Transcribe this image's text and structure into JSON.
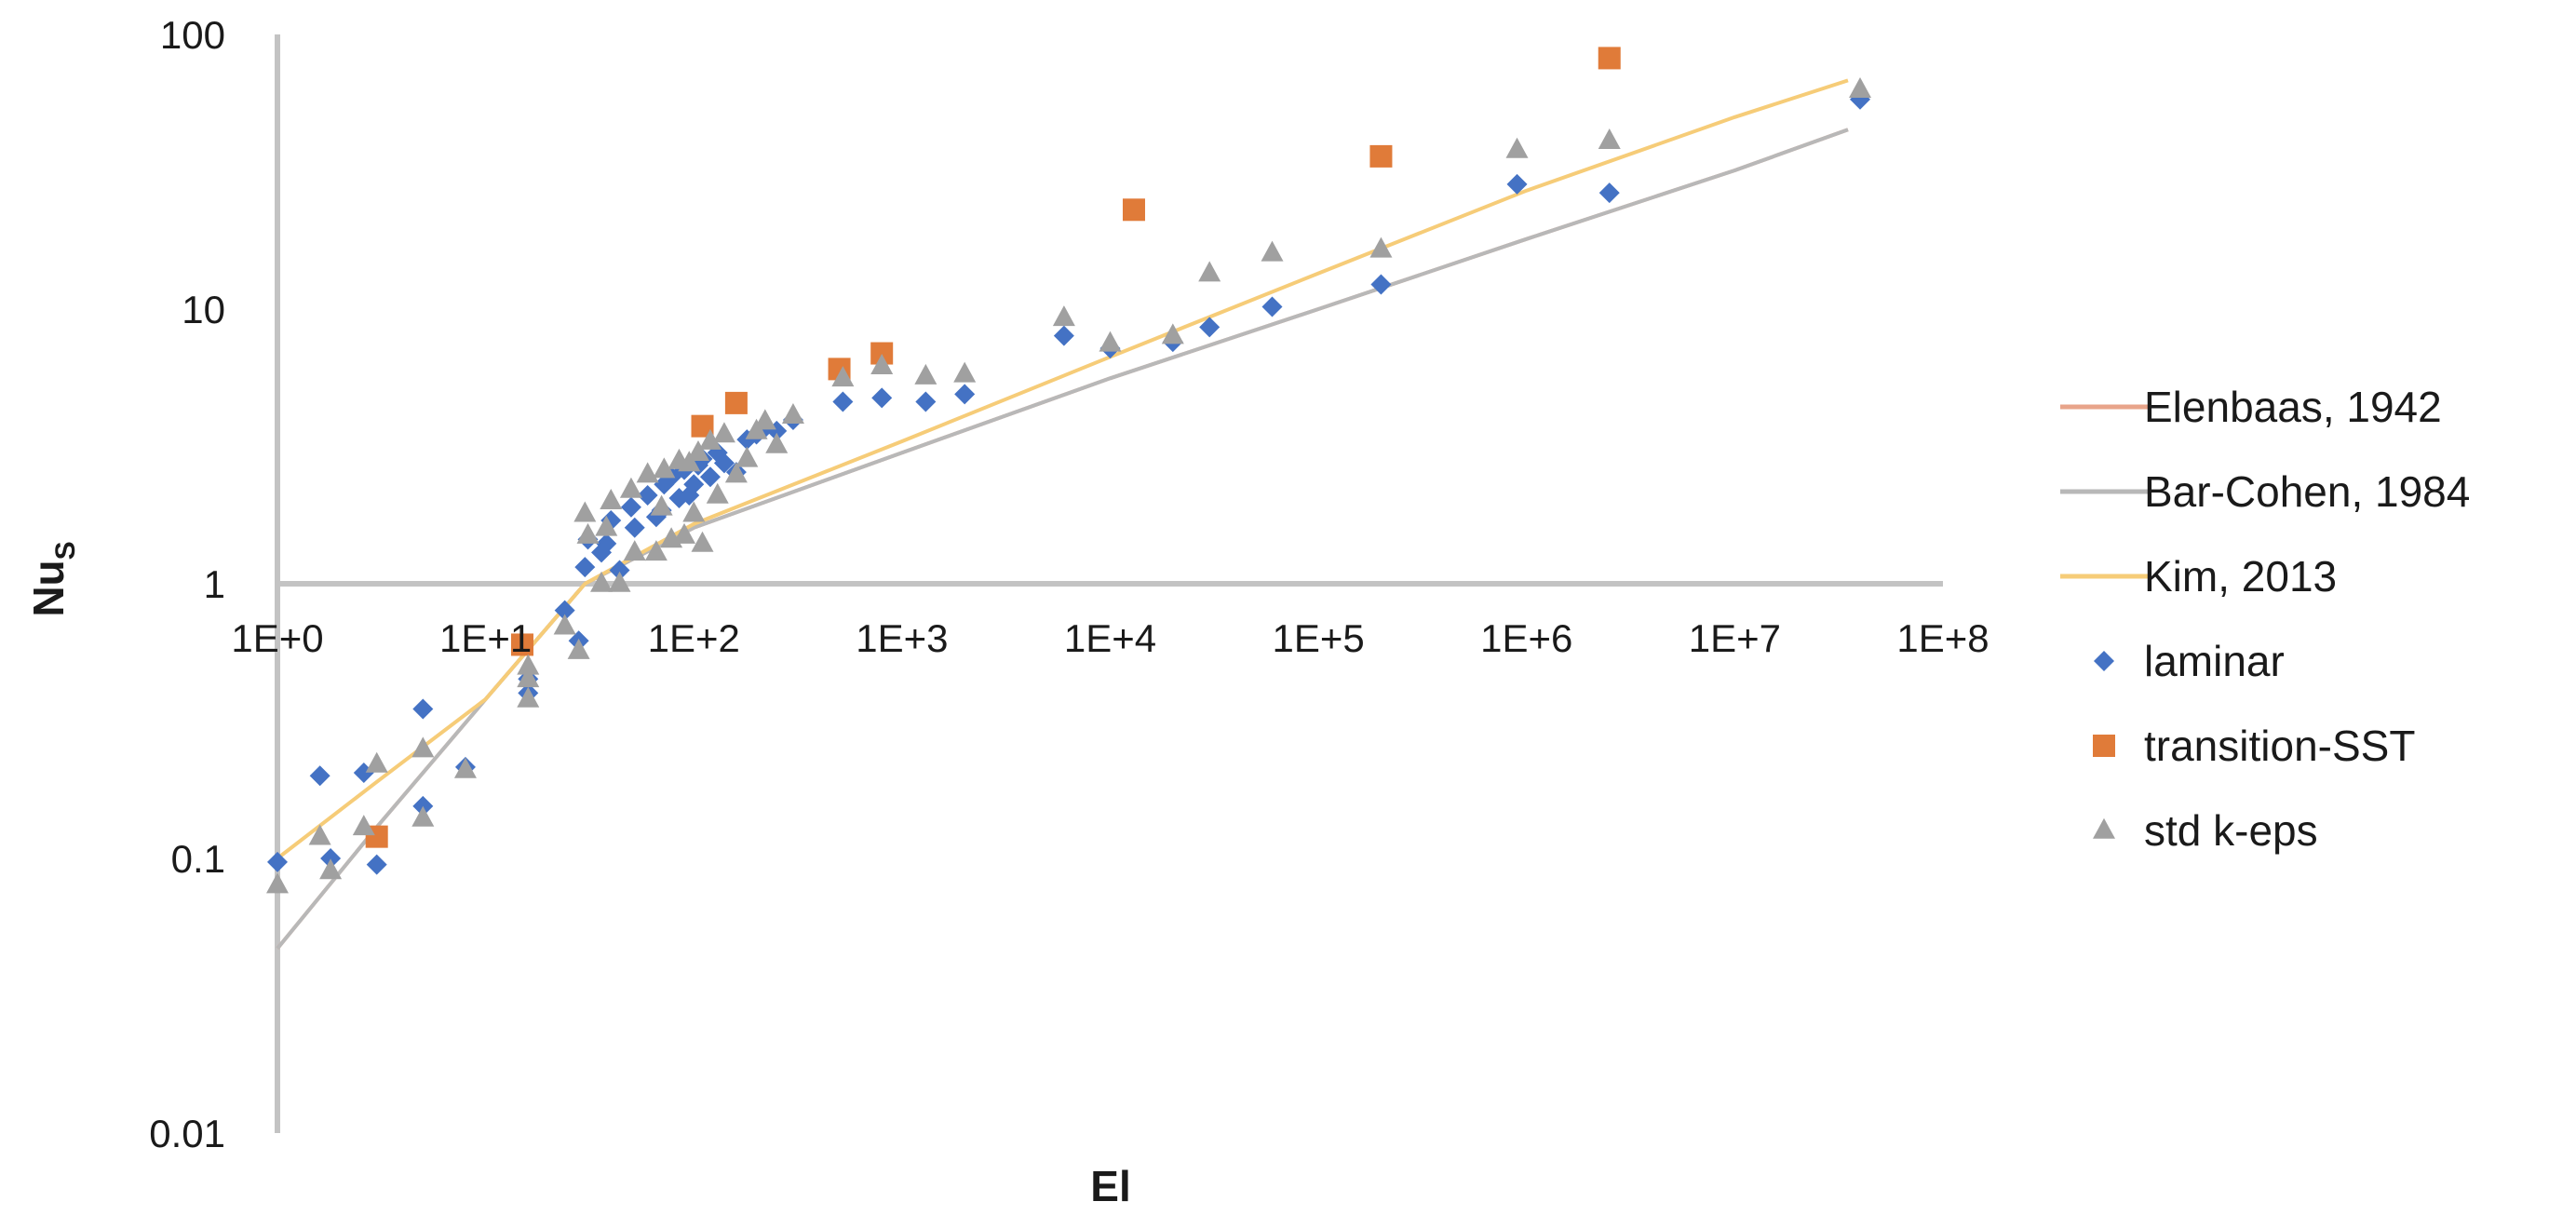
{
  "chart_data": {
    "type": "scatter",
    "xlabel": "El",
    "ylabel": {
      "main": "Nu",
      "sub": "S"
    },
    "xscale": "log",
    "yscale": "log",
    "xlim": [
      1,
      100000000
    ],
    "ylim": [
      0.01,
      100
    ],
    "x_tick_values": [
      1,
      10,
      100,
      1000,
      10000,
      100000,
      1000000,
      10000000,
      100000000
    ],
    "x_tick_labels": [
      "1E+0",
      "1E+1",
      "1E+2",
      "1E+3",
      "1E+4",
      "1E+5",
      "1E+6",
      "1E+7",
      "1E+8"
    ],
    "y_tick_values": [
      0.01,
      0.1,
      1,
      10,
      100
    ],
    "y_tick_labels": [
      "0.01",
      "0.1",
      "1",
      "10",
      "100"
    ],
    "grid": false,
    "legend_position": "right",
    "series": [
      {
        "name": "Elenbaas, 1942",
        "kind": "line",
        "color": "#e8a48a",
        "points": [
          [
            1,
            0.047
          ],
          [
            3,
            0.13
          ],
          [
            10,
            0.38
          ],
          [
            30,
            1.0
          ],
          [
            100,
            1.6
          ],
          [
            1000,
            3.0
          ],
          [
            10000,
            5.6
          ],
          [
            100000,
            10.0
          ],
          [
            1000000,
            18.0
          ],
          [
            10000000,
            32.0
          ],
          [
            35000000,
            45.0
          ]
        ]
      },
      {
        "name": "Bar-Cohen, 1984",
        "kind": "line",
        "color": "#b8b8b8",
        "points": [
          [
            1,
            0.047
          ],
          [
            3,
            0.13
          ],
          [
            10,
            0.38
          ],
          [
            30,
            1.0
          ],
          [
            100,
            1.6
          ],
          [
            1000,
            3.0
          ],
          [
            10000,
            5.6
          ],
          [
            100000,
            10.0
          ],
          [
            1000000,
            18.0
          ],
          [
            10000000,
            32.0
          ],
          [
            35000000,
            45.0
          ]
        ]
      },
      {
        "name": "Kim, 2013",
        "kind": "line",
        "color": "#f6cc78",
        "points": [
          [
            1,
            0.1
          ],
          [
            3,
            0.19
          ],
          [
            10,
            0.38
          ],
          [
            30,
            1.0
          ],
          [
            100,
            1.65
          ],
          [
            1000,
            3.3
          ],
          [
            10000,
            6.7
          ],
          [
            100000,
            13.5
          ],
          [
            1000000,
            27.0
          ],
          [
            10000000,
            50.0
          ],
          [
            35000000,
            68.0
          ]
        ]
      },
      {
        "name": "laminar",
        "kind": "scatter",
        "marker": "diamond",
        "color": "#4472c4",
        "points": [
          [
            1.0,
            0.097
          ],
          [
            1.6,
            0.2
          ],
          [
            1.8,
            0.1
          ],
          [
            2.6,
            0.205
          ],
          [
            3.0,
            0.095
          ],
          [
            5.0,
            0.155
          ],
          [
            5.0,
            0.35
          ],
          [
            8.0,
            0.215
          ],
          [
            16,
            0.4
          ],
          [
            16,
            0.45
          ],
          [
            24,
            0.8
          ],
          [
            28,
            0.62
          ],
          [
            30,
            1.15
          ],
          [
            31,
            1.45
          ],
          [
            36,
            1.3
          ],
          [
            38,
            1.4
          ],
          [
            40,
            1.7
          ],
          [
            44,
            1.12
          ],
          [
            50,
            1.9
          ],
          [
            52,
            1.6
          ],
          [
            60,
            2.1
          ],
          [
            66,
            1.75
          ],
          [
            70,
            1.85
          ],
          [
            72,
            2.3
          ],
          [
            78,
            2.45
          ],
          [
            85,
            2.05
          ],
          [
            90,
            2.6
          ],
          [
            95,
            2.1
          ],
          [
            100,
            2.3
          ],
          [
            105,
            2.7
          ],
          [
            110,
            2.85
          ],
          [
            120,
            2.45
          ],
          [
            130,
            3.0
          ],
          [
            140,
            2.75
          ],
          [
            160,
            2.55
          ],
          [
            180,
            3.35
          ],
          [
            200,
            3.5
          ],
          [
            220,
            3.7
          ],
          [
            250,
            3.6
          ],
          [
            300,
            3.95
          ],
          [
            520,
            4.6
          ],
          [
            800,
            4.75
          ],
          [
            1300,
            4.6
          ],
          [
            2000,
            4.9
          ],
          [
            6000,
            8.0
          ],
          [
            10000,
            7.2
          ],
          [
            20000,
            7.6
          ],
          [
            30000,
            8.6
          ],
          [
            60000,
            10.2
          ],
          [
            200000,
            12.3
          ],
          [
            900000,
            28.5
          ],
          [
            2500000,
            26.5
          ],
          [
            40000000,
            58.0
          ]
        ]
      },
      {
        "name": "transition-SST",
        "kind": "scatter",
        "marker": "square",
        "color": "#e07b39",
        "points": [
          [
            3.0,
            0.12
          ],
          [
            15,
            0.6
          ],
          [
            110,
            3.75
          ],
          [
            160,
            4.55
          ],
          [
            500,
            6.05
          ],
          [
            800,
            6.9
          ],
          [
            13000,
            23.0
          ],
          [
            200000,
            36.0
          ],
          [
            2500000,
            82.0
          ]
        ]
      },
      {
        "name": "std k-eps",
        "kind": "scatter",
        "marker": "triangle",
        "color": "#a0a0a0",
        "points": [
          [
            1.0,
            0.08
          ],
          [
            1.6,
            0.12
          ],
          [
            1.8,
            0.09
          ],
          [
            2.6,
            0.13
          ],
          [
            3.0,
            0.22
          ],
          [
            5.0,
            0.14
          ],
          [
            5.0,
            0.25
          ],
          [
            8.0,
            0.21
          ],
          [
            16,
            0.38
          ],
          [
            16,
            0.45
          ],
          [
            16,
            0.5
          ],
          [
            24,
            0.7
          ],
          [
            28,
            0.57
          ],
          [
            30,
            1.8
          ],
          [
            31,
            1.5
          ],
          [
            36,
            1.0
          ],
          [
            38,
            1.6
          ],
          [
            40,
            2.0
          ],
          [
            44,
            1.0
          ],
          [
            50,
            2.2
          ],
          [
            52,
            1.3
          ],
          [
            60,
            2.5
          ],
          [
            66,
            1.3
          ],
          [
            70,
            1.9
          ],
          [
            72,
            2.6
          ],
          [
            78,
            1.45
          ],
          [
            85,
            2.8
          ],
          [
            90,
            1.5
          ],
          [
            95,
            2.75
          ],
          [
            100,
            1.8
          ],
          [
            105,
            3.0
          ],
          [
            110,
            1.4
          ],
          [
            120,
            3.3
          ],
          [
            130,
            2.1
          ],
          [
            140,
            3.5
          ],
          [
            160,
            2.5
          ],
          [
            180,
            2.85
          ],
          [
            200,
            3.6
          ],
          [
            220,
            3.9
          ],
          [
            250,
            3.2
          ],
          [
            300,
            4.1
          ],
          [
            520,
            5.6
          ],
          [
            800,
            6.2
          ],
          [
            1300,
            5.7
          ],
          [
            2000,
            5.8
          ],
          [
            6000,
            9.3
          ],
          [
            10000,
            7.5
          ],
          [
            20000,
            8.0
          ],
          [
            30000,
            13.5
          ],
          [
            60000,
            16.0
          ],
          [
            200000,
            16.5
          ],
          [
            900000,
            38.0
          ],
          [
            2500000,
            41.0
          ],
          [
            40000000,
            63.0
          ]
        ]
      }
    ]
  }
}
